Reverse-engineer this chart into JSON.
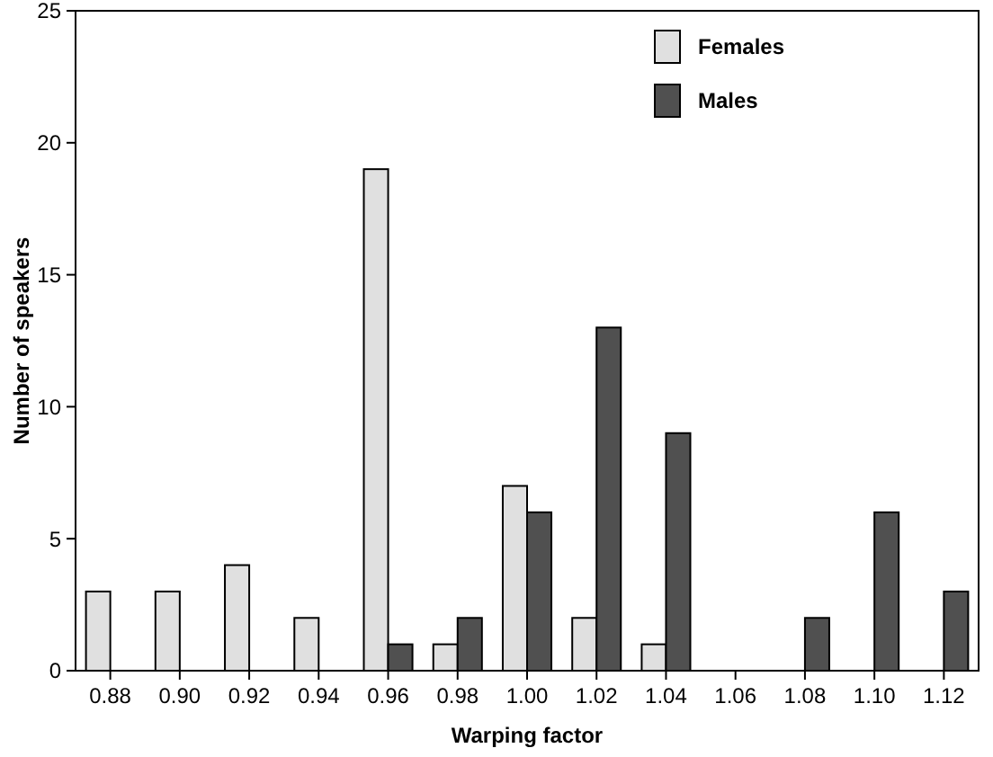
{
  "chart_data": {
    "type": "bar",
    "xlabel": "Warping factor",
    "ylabel": "Number of speakers",
    "categories": [
      "0.88",
      "0.90",
      "0.92",
      "0.94",
      "0.96",
      "0.98",
      "1.00",
      "1.02",
      "1.04",
      "1.06",
      "1.08",
      "1.10",
      "1.12"
    ],
    "series": [
      {
        "name": "Females",
        "color": "#e0e0e0",
        "values": [
          3,
          3,
          4,
          2,
          19,
          1,
          7,
          2,
          1,
          0,
          0,
          0,
          0
        ]
      },
      {
        "name": "Males",
        "color": "#505050",
        "values": [
          0,
          0,
          0,
          0,
          1,
          2,
          6,
          13,
          9,
          0,
          2,
          6,
          3
        ]
      }
    ],
    "ylim": [
      0,
      25
    ],
    "yticks": [
      0,
      5,
      10,
      15,
      20,
      25
    ],
    "grid": false,
    "legend": "top right"
  }
}
